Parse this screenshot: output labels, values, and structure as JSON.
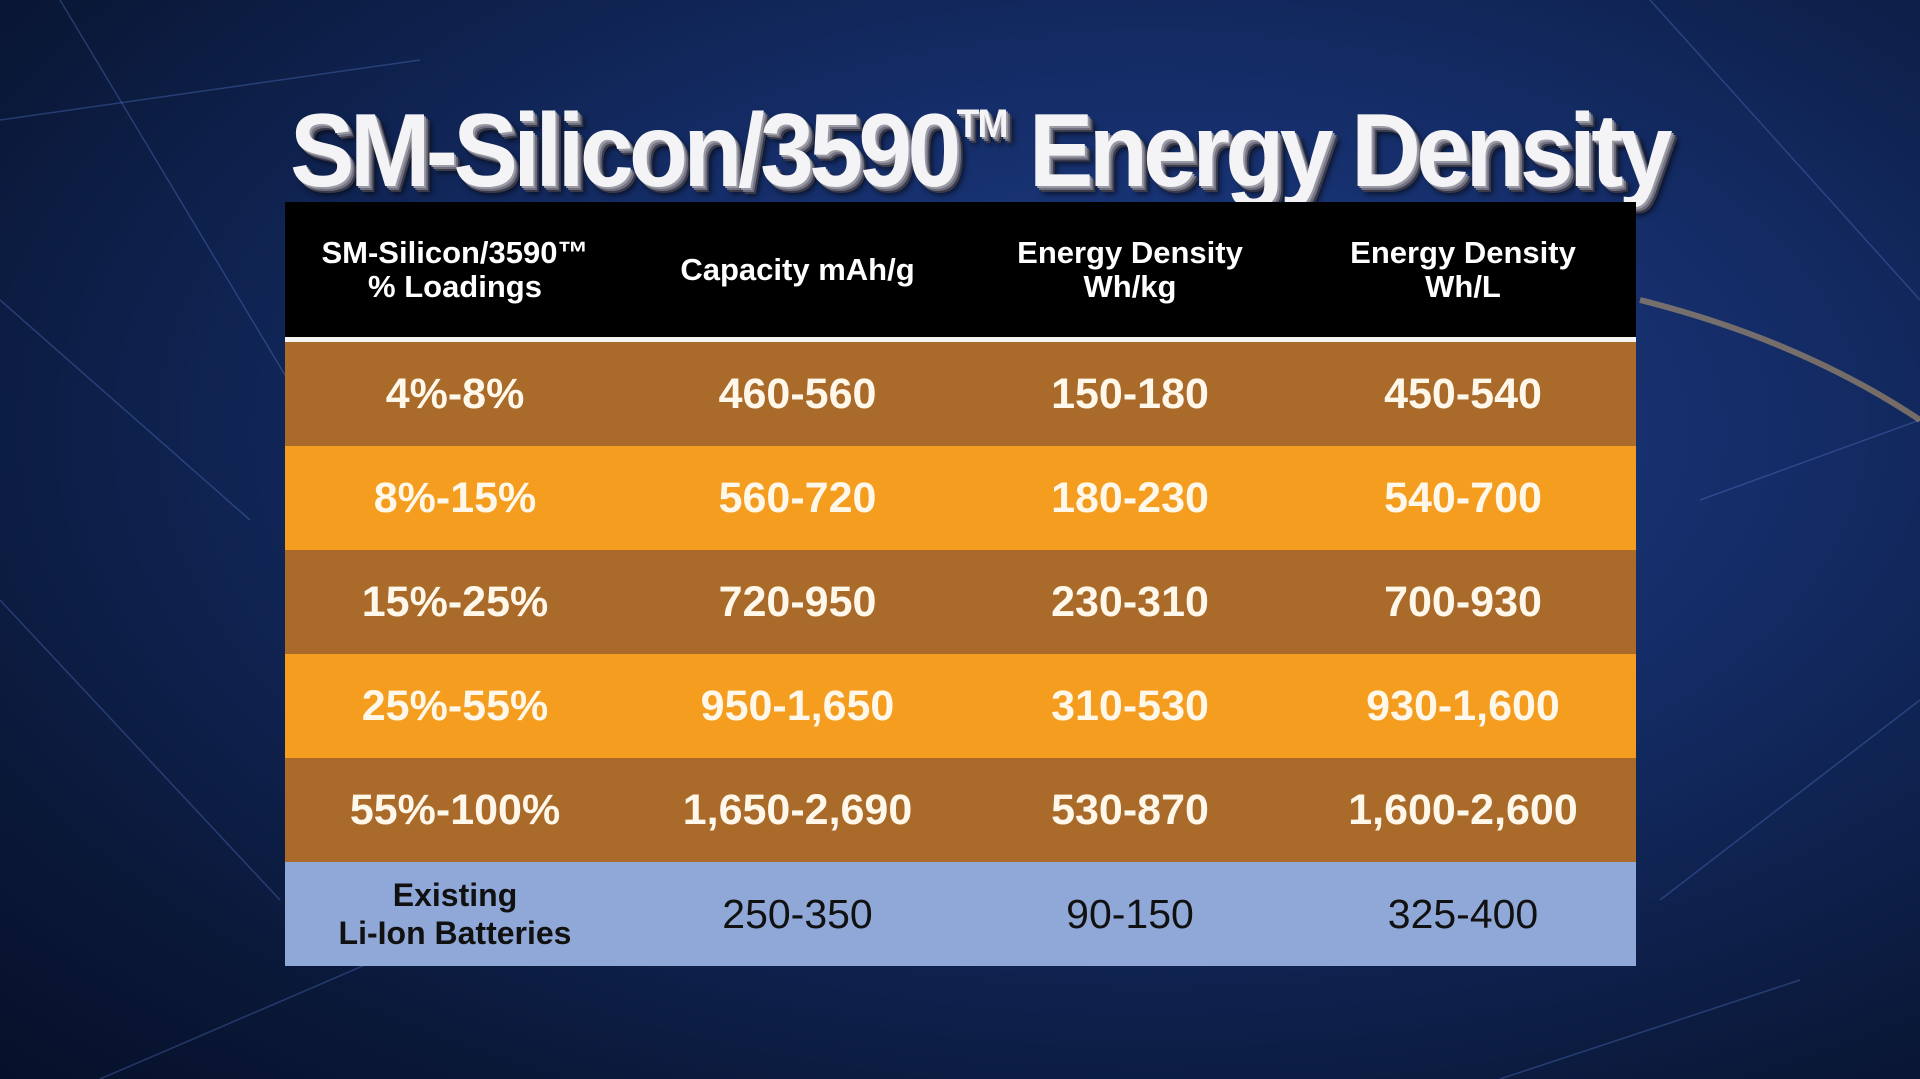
{
  "title": {
    "main": "SM-Silicon/3590",
    "tm": "TM",
    "suffix": " Energy Density"
  },
  "table": {
    "headers": [
      {
        "line1": "SM-Silicon/3590™",
        "line2": "% Loadings"
      },
      {
        "line1": "Capacity mAh/g",
        "line2": ""
      },
      {
        "line1": "Energy Density",
        "line2": "Wh/kg"
      },
      {
        "line1": "Energy Density",
        "line2": "Wh/L"
      }
    ],
    "rows": [
      [
        "4%-8%",
        "460-560",
        "150-180",
        "450-540"
      ],
      [
        "8%-15%",
        "560-720",
        "180-230",
        "540-700"
      ],
      [
        "15%-25%",
        "720-950",
        "230-310",
        "700-930"
      ],
      [
        "25%-55%",
        "950-1,650",
        "310-530",
        "930-1,600"
      ],
      [
        "55%-100%",
        "1,650-2,690",
        "530-870",
        "1,600-2,600"
      ]
    ],
    "baseline": {
      "label1": "Existing",
      "label2": "Li-Ion Batteries",
      "values": [
        "250-350",
        "90-150",
        "325-400"
      ]
    }
  },
  "colors": {
    "brown": "#a96a2a",
    "orange": "#f49d1f",
    "blue": "#8fa8d8",
    "header": "#000000"
  }
}
